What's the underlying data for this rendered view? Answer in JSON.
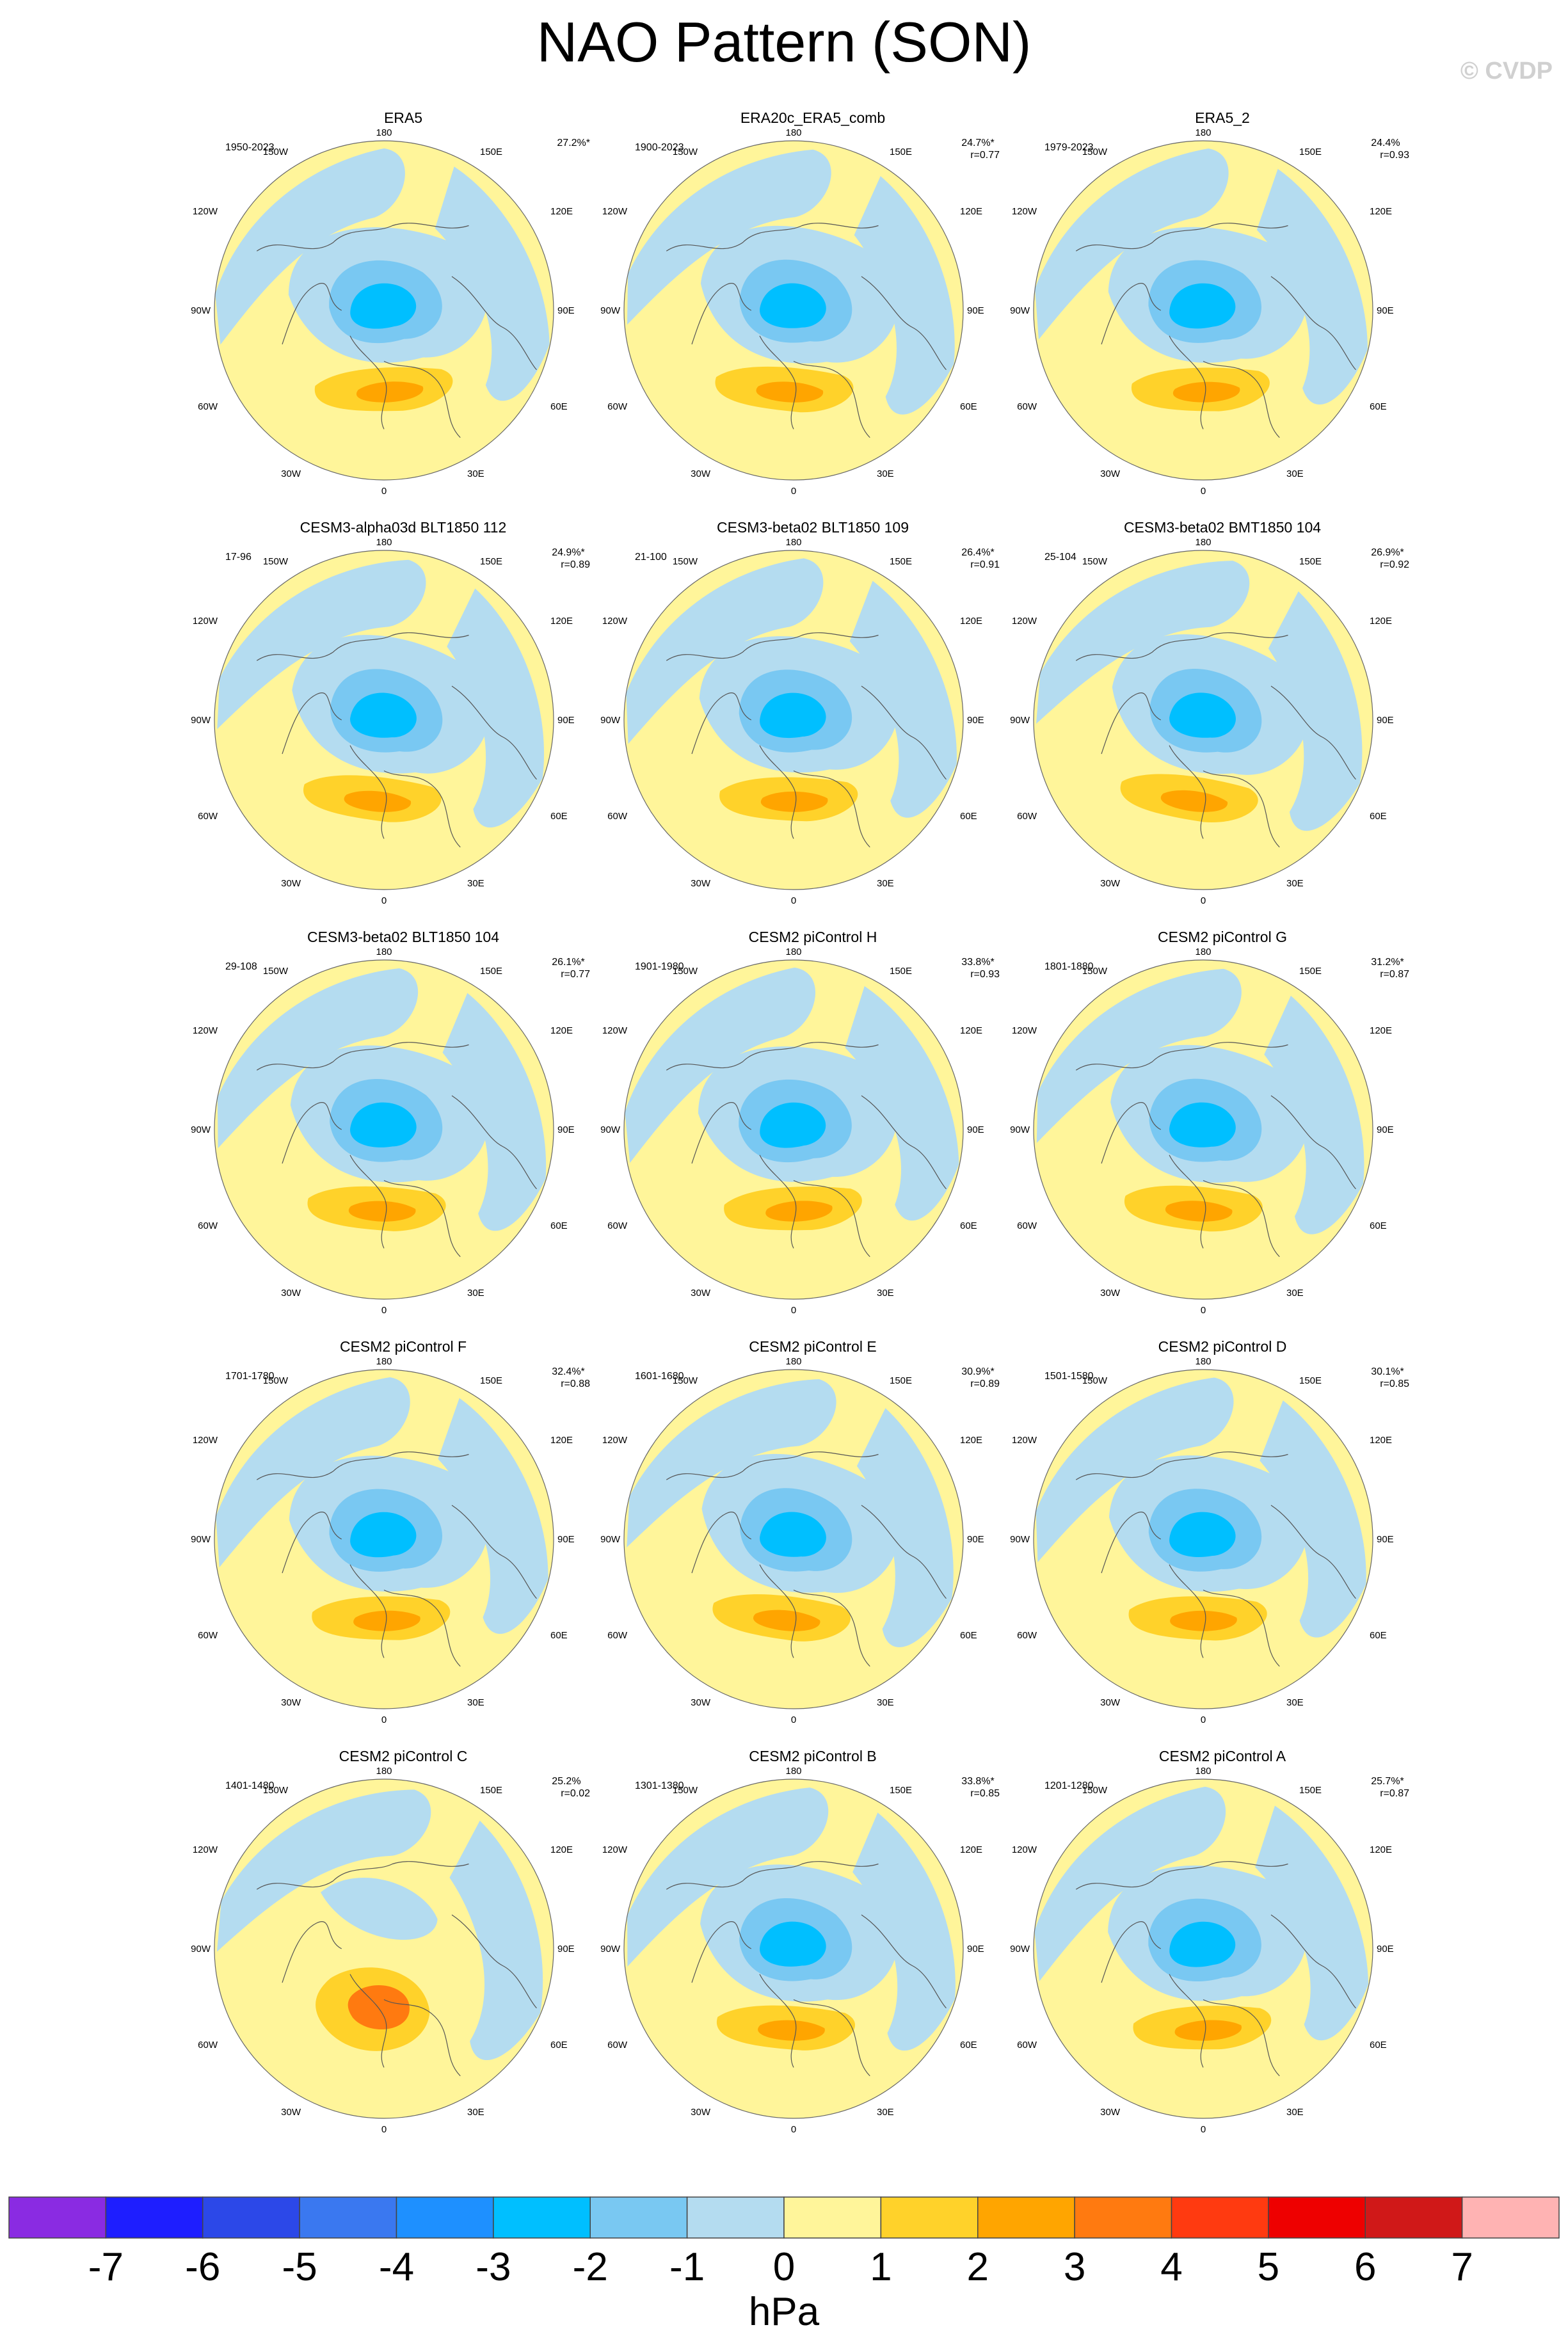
{
  "title": "NAO Pattern (SON)",
  "watermark": "© CVDP",
  "lon_labels": {
    "top": "180",
    "bottom": "0",
    "l150": "150W",
    "l120": "120W",
    "l90": "90W",
    "l60": "60W",
    "l30": "30W",
    "r150": "150E",
    "r120": "120E",
    "r90": "90E",
    "r60": "60E",
    "r30": "30E"
  },
  "panels": [
    {
      "title": "ERA5",
      "period": "1950-2023",
      "pct": "27.2%*",
      "r": ""
    },
    {
      "title": "ERA20c_ERA5_comb",
      "period": "1900-2023",
      "pct": "24.7%*",
      "r": "r=0.77"
    },
    {
      "title": "ERA5_2",
      "period": "1979-2023",
      "pct": "24.4%",
      "r": "r=0.93"
    },
    {
      "title": "CESM3-alpha03d BLT1850 112",
      "period": "17-96",
      "pct": "24.9%*",
      "r": "r=0.89"
    },
    {
      "title": "CESM3-beta02 BLT1850 109",
      "period": "21-100",
      "pct": "26.4%*",
      "r": "r=0.91"
    },
    {
      "title": "CESM3-beta02 BMT1850 104",
      "period": "25-104",
      "pct": "26.9%*",
      "r": "r=0.92"
    },
    {
      "title": "CESM3-beta02 BLT1850 104",
      "period": "29-108",
      "pct": "26.1%*",
      "r": "r=0.77"
    },
    {
      "title": "CESM2 piControl H",
      "period": "1901-1980",
      "pct": "33.8%*",
      "r": "r=0.93"
    },
    {
      "title": "CESM2 piControl G",
      "period": "1801-1880",
      "pct": "31.2%*",
      "r": "r=0.87"
    },
    {
      "title": "CESM2 piControl F",
      "period": "1701-1780",
      "pct": "32.4%*",
      "r": "r=0.88"
    },
    {
      "title": "CESM2 piControl E",
      "period": "1601-1680",
      "pct": "30.9%*",
      "r": "r=0.89"
    },
    {
      "title": "CESM2 piControl D",
      "period": "1501-1580",
      "pct": "30.1%*",
      "r": "r=0.85"
    },
    {
      "title": "CESM2 piControl C",
      "period": "1401-1480",
      "pct": "25.2%",
      "r": "r=0.02"
    },
    {
      "title": "CESM2 piControl B",
      "period": "1301-1380",
      "pct": "33.8%*",
      "r": "r=0.85"
    },
    {
      "title": "CESM2 piControl A",
      "period": "1201-1280",
      "pct": "25.7%*",
      "r": "r=0.87"
    }
  ],
  "colorbar": {
    "colors": [
      "#8a2be2",
      "#1e1eff",
      "#2c48e8",
      "#3a78f0",
      "#1e90ff",
      "#00bfff",
      "#79c8f2",
      "#b4dcf0",
      "#fff59a",
      "#ffd22a",
      "#ffa500",
      "#ff7a10",
      "#ff3a10",
      "#ee0000",
      "#d01818",
      "#ffb3b3"
    ],
    "ticks": [
      "-7",
      "-6",
      "-5",
      "-4",
      "-3",
      "-2",
      "-1",
      "0",
      "1",
      "2",
      "3",
      "4",
      "5",
      "6",
      "7"
    ],
    "unit": "hPa"
  }
}
